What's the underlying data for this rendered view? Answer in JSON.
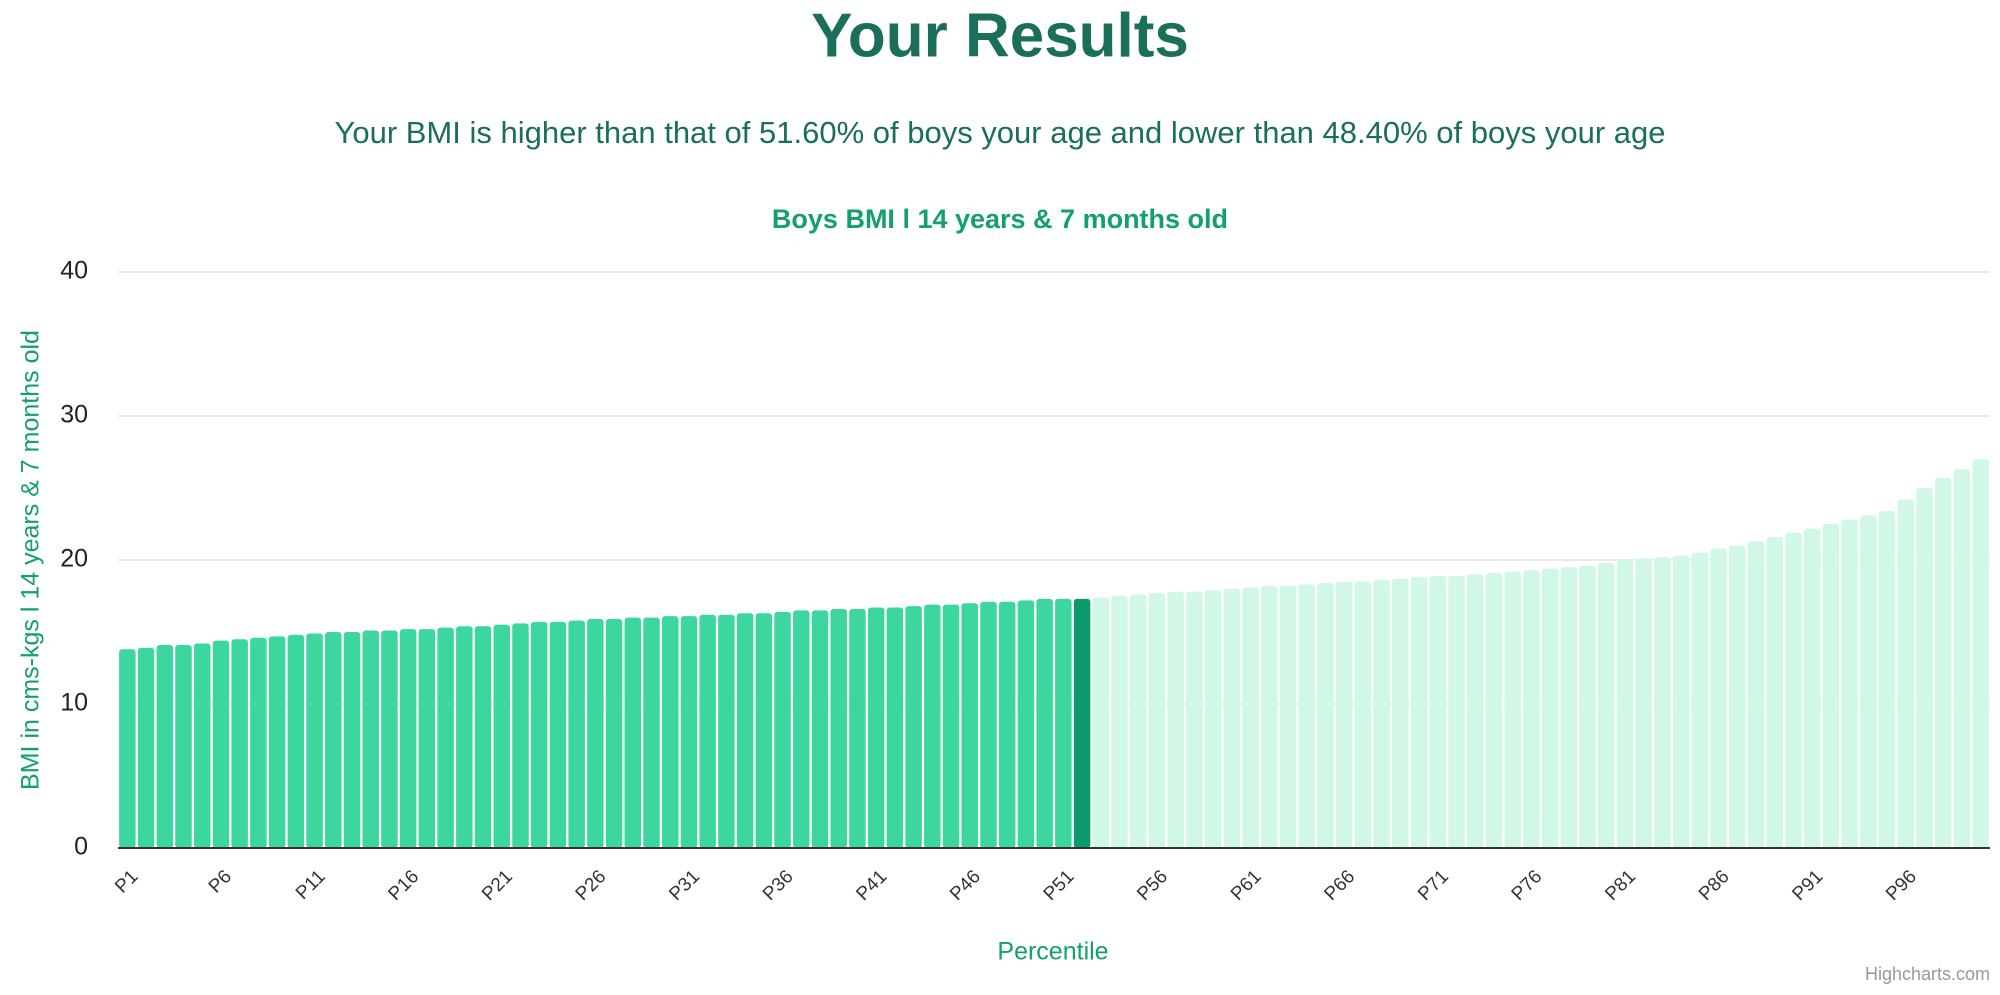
{
  "header": {
    "title": "Your Results",
    "subtitle": "Your BMI is higher than that of 51.60% of boys your age and lower than 48.40% of boys your age"
  },
  "chart_data": {
    "type": "bar",
    "title": "Boys BMI l 14 years & 7 months old",
    "y_label": "BMI in cms-kgs l 14 years & 7 months old",
    "x_label": "Percentile",
    "credits": "Highcharts.com",
    "categories": [
      "P1",
      null,
      null,
      null,
      null,
      "P6",
      null,
      null,
      null,
      null,
      "P11",
      null,
      null,
      null,
      null,
      "P16",
      null,
      null,
      null,
      null,
      "P21",
      null,
      null,
      null,
      null,
      "P26",
      null,
      null,
      null,
      null,
      "P31",
      null,
      null,
      null,
      null,
      "P36",
      null,
      null,
      null,
      null,
      "P41",
      null,
      null,
      null,
      null,
      "P46",
      null,
      null,
      null,
      null,
      "P51",
      null,
      null,
      null,
      null,
      "P56",
      null,
      null,
      null,
      null,
      "P61",
      null,
      null,
      null,
      null,
      "P66",
      null,
      null,
      null,
      null,
      "P71",
      null,
      null,
      null,
      null,
      "P76",
      null,
      null,
      null,
      null,
      "P81",
      null,
      null,
      null,
      null,
      "P86",
      null,
      null,
      null,
      null,
      "P91",
      null,
      null,
      null,
      null,
      "P96",
      null,
      null,
      null,
      null
    ],
    "values": [
      13.8,
      13.9,
      14.1,
      14.1,
      14.2,
      14.4,
      14.5,
      14.6,
      14.7,
      14.8,
      14.9,
      15.0,
      15.0,
      15.1,
      15.1,
      15.2,
      15.2,
      15.3,
      15.4,
      15.4,
      15.5,
      15.6,
      15.7,
      15.7,
      15.8,
      15.9,
      15.9,
      16.0,
      16.0,
      16.1,
      16.1,
      16.2,
      16.2,
      16.3,
      16.3,
      16.4,
      16.5,
      16.5,
      16.6,
      16.6,
      16.7,
      16.7,
      16.8,
      16.9,
      16.9,
      17.0,
      17.1,
      17.1,
      17.2,
      17.3,
      17.3,
      17.3,
      17.4,
      17.5,
      17.6,
      17.7,
      17.8,
      17.8,
      17.9,
      18.0,
      18.1,
      18.2,
      18.2,
      18.3,
      18.4,
      18.5,
      18.5,
      18.6,
      18.7,
      18.8,
      18.9,
      18.9,
      19.0,
      19.1,
      19.2,
      19.3,
      19.4,
      19.5,
      19.6,
      19.8,
      20.0,
      20.1,
      20.2,
      20.3,
      20.5,
      20.8,
      21.0,
      21.3,
      21.6,
      21.9,
      22.2,
      22.5,
      22.8,
      23.1,
      23.4,
      24.2,
      25.0,
      25.7,
      26.3,
      27.0
    ],
    "colors": [
      "#3dd69f",
      "#3dd69f",
      "#3dd69f",
      "#3dd69f",
      "#3dd69f",
      "#3dd69f",
      "#3dd69f",
      "#3dd69f",
      "#3dd69f",
      "#3dd69f",
      "#3dd69f",
      "#3dd69f",
      "#3dd69f",
      "#3dd69f",
      "#3dd69f",
      "#3dd69f",
      "#3dd69f",
      "#3dd69f",
      "#3dd69f",
      "#3dd69f",
      "#3dd69f",
      "#3dd69f",
      "#3dd69f",
      "#3dd69f",
      "#3dd69f",
      "#3dd69f",
      "#3dd69f",
      "#3dd69f",
      "#3dd69f",
      "#3dd69f",
      "#3dd69f",
      "#3dd69f",
      "#3dd69f",
      "#3dd69f",
      "#3dd69f",
      "#3dd69f",
      "#3dd69f",
      "#3dd69f",
      "#3dd69f",
      "#3dd69f",
      "#3dd69f",
      "#3dd69f",
      "#3dd69f",
      "#3dd69f",
      "#3dd69f",
      "#3dd69f",
      "#3dd69f",
      "#3dd69f",
      "#3dd69f",
      "#3dd69f",
      "#3dd69f",
      "#0b9a6c",
      "#d0f8e5",
      "#d0f8e5",
      "#d0f8e5",
      "#d0f8e5",
      "#d0f8e5",
      "#d0f8e5",
      "#d0f8e5",
      "#d0f8e5",
      "#d0f8e5",
      "#d0f8e5",
      "#d0f8e5",
      "#d0f8e5",
      "#d0f8e5",
      "#d0f8e5",
      "#d0f8e5",
      "#d0f8e5",
      "#d0f8e5",
      "#d0f8e5",
      "#d0f8e5",
      "#d0f8e5",
      "#d0f8e5",
      "#d0f8e5",
      "#d0f8e5",
      "#d0f8e5",
      "#d0f8e5",
      "#d0f8e5",
      "#d0f8e5",
      "#d0f8e5",
      "#d0f8e5",
      "#d0f8e5",
      "#d0f8e5",
      "#d0f8e5",
      "#d0f8e5",
      "#d0f8e5",
      "#d0f8e5",
      "#d0f8e5",
      "#d0f8e5",
      "#d0f8e5",
      "#d0f8e5",
      "#d0f8e5",
      "#d0f8e5",
      "#d0f8e5",
      "#d0f8e5",
      "#d0f8e5",
      "#d0f8e5",
      "#d0f8e5",
      "#d0f8e5",
      "#d0f8e5"
    ],
    "ylim": [
      0,
      40
    ],
    "yticks": [
      0,
      10,
      20,
      30,
      40
    ],
    "grid": true
  }
}
